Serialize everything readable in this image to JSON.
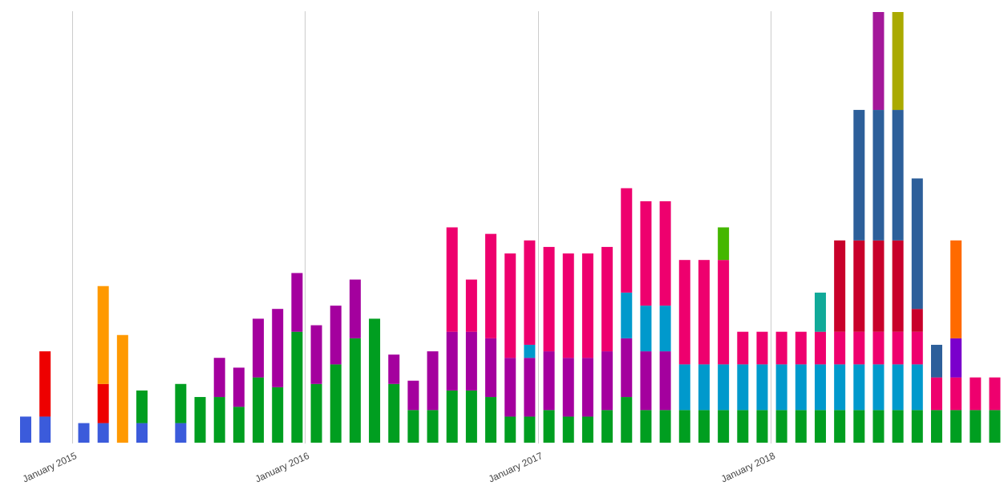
{
  "chart_data": {
    "type": "bar",
    "stacked": true,
    "ylim": [
      0,
      66
    ],
    "grid": "vertical lines at year marks",
    "legend": "none",
    "x_tick_labels": [
      "January 2015",
      "January 2016",
      "January 2017",
      "January 2018"
    ],
    "x_tick_months": [
      "2015-01",
      "2016-01",
      "2017-01",
      "2018-01"
    ],
    "palette": {
      "blue": "#3b5bdb",
      "red": "#ee0000",
      "orange": "#ff9900",
      "green": "#009e20",
      "purple": "#a4009e",
      "pink": "#ee006e",
      "cyan": "#0099cc",
      "lime": "#44b700",
      "teal": "#11aa99",
      "crimson": "#c8002a",
      "navy": "#2d5f9a",
      "magenta": "#a4189a",
      "olive": "#aaaa00",
      "violet": "#7a00cc",
      "darkorange": "#ff6a00"
    },
    "categories": [
      "2014-10",
      "2014-11",
      "2014-12",
      "2015-01",
      "2015-02",
      "2015-03",
      "2015-04",
      "2015-05",
      "2015-06",
      "2015-07",
      "2015-08",
      "2015-09",
      "2015-10",
      "2015-11",
      "2015-12",
      "2016-01",
      "2016-02",
      "2016-03",
      "2016-04",
      "2016-05",
      "2016-06",
      "2016-07",
      "2016-08",
      "2016-09",
      "2016-10",
      "2016-11",
      "2016-12",
      "2017-01",
      "2017-02",
      "2017-03",
      "2017-04",
      "2017-05",
      "2017-06",
      "2017-07",
      "2017-08",
      "2017-09",
      "2017-10",
      "2017-11",
      "2017-12",
      "2018-01",
      "2018-02",
      "2018-03",
      "2018-04",
      "2018-05",
      "2018-06",
      "2018-07",
      "2018-08",
      "2018-09",
      "2018-10",
      "2018-11",
      "2018-12",
      "2019-01"
    ],
    "bars": [
      {
        "month": "2014-10",
        "segments": [
          {
            "color": "blue",
            "value": 4
          }
        ]
      },
      {
        "month": "2014-11",
        "segments": [
          {
            "color": "blue",
            "value": 4
          },
          {
            "color": "red",
            "value": 10
          }
        ]
      },
      {
        "month": "2014-12",
        "segments": []
      },
      {
        "month": "2015-01",
        "segments": [
          {
            "color": "blue",
            "value": 3
          }
        ]
      },
      {
        "month": "2015-02",
        "segments": [
          {
            "color": "blue",
            "value": 3
          },
          {
            "color": "red",
            "value": 6
          },
          {
            "color": "orange",
            "value": 15
          }
        ]
      },
      {
        "month": "2015-03",
        "segments": [
          {
            "color": "orange",
            "value": 16.5
          }
        ]
      },
      {
        "month": "2015-04",
        "segments": [
          {
            "color": "blue",
            "value": 3
          },
          {
            "color": "green",
            "value": 5
          }
        ]
      },
      {
        "month": "2015-05",
        "segments": []
      },
      {
        "month": "2015-06",
        "segments": [
          {
            "color": "blue",
            "value": 3
          },
          {
            "color": "green",
            "value": 6
          }
        ]
      },
      {
        "month": "2015-07",
        "segments": [
          {
            "color": "green",
            "value": 7
          }
        ]
      },
      {
        "month": "2015-08",
        "segments": [
          {
            "color": "green",
            "value": 7
          },
          {
            "color": "purple",
            "value": 6
          }
        ]
      },
      {
        "month": "2015-09",
        "segments": [
          {
            "color": "green",
            "value": 5.5
          },
          {
            "color": "purple",
            "value": 6
          }
        ]
      },
      {
        "month": "2015-10",
        "segments": [
          {
            "color": "green",
            "value": 10
          },
          {
            "color": "purple",
            "value": 9
          }
        ]
      },
      {
        "month": "2015-11",
        "segments": [
          {
            "color": "green",
            "value": 8.5
          },
          {
            "color": "purple",
            "value": 12
          }
        ]
      },
      {
        "month": "2015-12",
        "segments": [
          {
            "color": "green",
            "value": 17
          },
          {
            "color": "purple",
            "value": 9
          }
        ]
      },
      {
        "month": "2016-01",
        "segments": [
          {
            "color": "green",
            "value": 9
          },
          {
            "color": "purple",
            "value": 9
          }
        ]
      },
      {
        "month": "2016-02",
        "segments": [
          {
            "color": "green",
            "value": 12
          },
          {
            "color": "purple",
            "value": 9
          }
        ]
      },
      {
        "month": "2016-03",
        "segments": [
          {
            "color": "green",
            "value": 16
          },
          {
            "color": "purple",
            "value": 9
          }
        ]
      },
      {
        "month": "2016-04",
        "segments": [
          {
            "color": "green",
            "value": 19
          }
        ]
      },
      {
        "month": "2016-05",
        "segments": [
          {
            "color": "green",
            "value": 9
          },
          {
            "color": "purple",
            "value": 4.5
          }
        ]
      },
      {
        "month": "2016-06",
        "segments": [
          {
            "color": "green",
            "value": 5
          },
          {
            "color": "purple",
            "value": 4.5
          }
        ]
      },
      {
        "month": "2016-07",
        "segments": [
          {
            "color": "green",
            "value": 5
          },
          {
            "color": "purple",
            "value": 9
          }
        ]
      },
      {
        "month": "2016-08",
        "segments": [
          {
            "color": "green",
            "value": 8
          },
          {
            "color": "purple",
            "value": 9
          },
          {
            "color": "pink",
            "value": 16
          }
        ]
      },
      {
        "month": "2016-09",
        "segments": [
          {
            "color": "green",
            "value": 8
          },
          {
            "color": "purple",
            "value": 9
          },
          {
            "color": "pink",
            "value": 8
          }
        ]
      },
      {
        "month": "2016-10",
        "segments": [
          {
            "color": "green",
            "value": 7
          },
          {
            "color": "purple",
            "value": 9
          },
          {
            "color": "pink",
            "value": 16
          }
        ]
      },
      {
        "month": "2016-11",
        "segments": [
          {
            "color": "green",
            "value": 4
          },
          {
            "color": "purple",
            "value": 9
          },
          {
            "color": "pink",
            "value": 16
          }
        ]
      },
      {
        "month": "2016-12",
        "segments": [
          {
            "color": "green",
            "value": 4
          },
          {
            "color": "purple",
            "value": 9
          },
          {
            "color": "cyan",
            "value": 2
          },
          {
            "color": "pink",
            "value": 16
          }
        ]
      },
      {
        "month": "2017-01",
        "segments": [
          {
            "color": "green",
            "value": 5
          },
          {
            "color": "purple",
            "value": 9
          },
          {
            "color": "pink",
            "value": 16
          }
        ]
      },
      {
        "month": "2017-02",
        "segments": [
          {
            "color": "green",
            "value": 4
          },
          {
            "color": "purple",
            "value": 9
          },
          {
            "color": "pink",
            "value": 16
          }
        ]
      },
      {
        "month": "2017-03",
        "segments": [
          {
            "color": "green",
            "value": 4
          },
          {
            "color": "purple",
            "value": 9
          },
          {
            "color": "pink",
            "value": 16
          }
        ]
      },
      {
        "month": "2017-04",
        "segments": [
          {
            "color": "green",
            "value": 5
          },
          {
            "color": "purple",
            "value": 9
          },
          {
            "color": "pink",
            "value": 16
          }
        ]
      },
      {
        "month": "2017-05",
        "segments": [
          {
            "color": "green",
            "value": 7
          },
          {
            "color": "purple",
            "value": 9
          },
          {
            "color": "cyan",
            "value": 7
          },
          {
            "color": "pink",
            "value": 16
          }
        ]
      },
      {
        "month": "2017-06",
        "segments": [
          {
            "color": "green",
            "value": 5
          },
          {
            "color": "purple",
            "value": 9
          },
          {
            "color": "cyan",
            "value": 7
          },
          {
            "color": "pink",
            "value": 16
          }
        ]
      },
      {
        "month": "2017-07",
        "segments": [
          {
            "color": "green",
            "value": 5
          },
          {
            "color": "purple",
            "value": 9
          },
          {
            "color": "cyan",
            "value": 7
          },
          {
            "color": "pink",
            "value": 16
          }
        ]
      },
      {
        "month": "2017-08",
        "segments": [
          {
            "color": "green",
            "value": 5
          },
          {
            "color": "cyan",
            "value": 7
          },
          {
            "color": "pink",
            "value": 16
          }
        ]
      },
      {
        "month": "2017-09",
        "segments": [
          {
            "color": "green",
            "value": 5
          },
          {
            "color": "cyan",
            "value": 7
          },
          {
            "color": "pink",
            "value": 16
          }
        ]
      },
      {
        "month": "2017-10",
        "segments": [
          {
            "color": "green",
            "value": 5
          },
          {
            "color": "cyan",
            "value": 7
          },
          {
            "color": "pink",
            "value": 16
          },
          {
            "color": "lime",
            "value": 5
          }
        ]
      },
      {
        "month": "2017-11",
        "segments": [
          {
            "color": "green",
            "value": 5
          },
          {
            "color": "cyan",
            "value": 7
          },
          {
            "color": "pink",
            "value": 5
          }
        ]
      },
      {
        "month": "2017-12",
        "segments": [
          {
            "color": "green",
            "value": 5
          },
          {
            "color": "cyan",
            "value": 7
          },
          {
            "color": "pink",
            "value": 5
          }
        ]
      },
      {
        "month": "2018-01",
        "segments": [
          {
            "color": "green",
            "value": 5
          },
          {
            "color": "cyan",
            "value": 7
          },
          {
            "color": "pink",
            "value": 5
          }
        ]
      },
      {
        "month": "2018-02",
        "segments": [
          {
            "color": "green",
            "value": 5
          },
          {
            "color": "cyan",
            "value": 7
          },
          {
            "color": "pink",
            "value": 5
          }
        ]
      },
      {
        "month": "2018-03",
        "segments": [
          {
            "color": "green",
            "value": 5
          },
          {
            "color": "cyan",
            "value": 7
          },
          {
            "color": "pink",
            "value": 5
          },
          {
            "color": "teal",
            "value": 6
          }
        ]
      },
      {
        "month": "2018-04",
        "segments": [
          {
            "color": "green",
            "value": 5
          },
          {
            "color": "cyan",
            "value": 7
          },
          {
            "color": "pink",
            "value": 5
          },
          {
            "color": "crimson",
            "value": 14
          }
        ]
      },
      {
        "month": "2018-05",
        "segments": [
          {
            "color": "green",
            "value": 5
          },
          {
            "color": "cyan",
            "value": 7
          },
          {
            "color": "pink",
            "value": 5
          },
          {
            "color": "crimson",
            "value": 14
          },
          {
            "color": "navy",
            "value": 20
          }
        ]
      },
      {
        "month": "2018-06",
        "segments": [
          {
            "color": "green",
            "value": 5
          },
          {
            "color": "cyan",
            "value": 7
          },
          {
            "color": "pink",
            "value": 5
          },
          {
            "color": "crimson",
            "value": 14
          },
          {
            "color": "navy",
            "value": 20
          },
          {
            "color": "magenta",
            "value": 15
          }
        ]
      },
      {
        "month": "2018-07",
        "segments": [
          {
            "color": "green",
            "value": 5
          },
          {
            "color": "cyan",
            "value": 7
          },
          {
            "color": "pink",
            "value": 5
          },
          {
            "color": "crimson",
            "value": 14
          },
          {
            "color": "navy",
            "value": 20
          },
          {
            "color": "olive",
            "value": 15
          }
        ]
      },
      {
        "month": "2018-08",
        "segments": [
          {
            "color": "green",
            "value": 5
          },
          {
            "color": "cyan",
            "value": 7
          },
          {
            "color": "pink",
            "value": 5
          },
          {
            "color": "crimson",
            "value": 3.5
          },
          {
            "color": "navy",
            "value": 20
          }
        ]
      },
      {
        "month": "2018-09",
        "segments": [
          {
            "color": "green",
            "value": 5
          },
          {
            "color": "pink",
            "value": 5
          },
          {
            "color": "navy",
            "value": 5
          }
        ]
      },
      {
        "month": "2018-10",
        "segments": [
          {
            "color": "green",
            "value": 5
          },
          {
            "color": "pink",
            "value": 5
          },
          {
            "color": "violet",
            "value": 6
          },
          {
            "color": "darkorange",
            "value": 15
          }
        ]
      },
      {
        "month": "2018-11",
        "segments": [
          {
            "color": "green",
            "value": 5
          },
          {
            "color": "pink",
            "value": 5
          }
        ]
      },
      {
        "month": "2018-12",
        "segments": [
          {
            "color": "green",
            "value": 5
          },
          {
            "color": "pink",
            "value": 5
          }
        ]
      }
    ]
  }
}
